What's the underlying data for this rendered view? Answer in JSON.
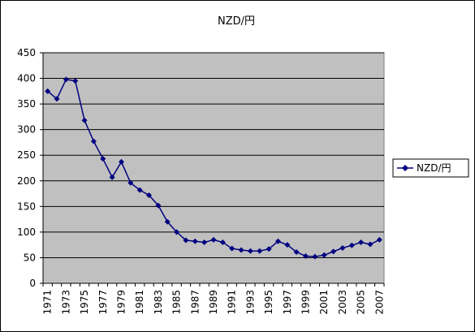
{
  "chart_data": {
    "type": "line",
    "title": "NZD/円",
    "xlabel": "",
    "ylabel": "",
    "ylim": [
      0,
      450
    ],
    "y_ticks": [
      0,
      50,
      100,
      150,
      200,
      250,
      300,
      350,
      400,
      450
    ],
    "x": [
      1971,
      1972,
      1973,
      1974,
      1975,
      1976,
      1977,
      1978,
      1979,
      1980,
      1981,
      1982,
      1983,
      1984,
      1985,
      1986,
      1987,
      1988,
      1989,
      1990,
      1991,
      1992,
      1993,
      1994,
      1995,
      1996,
      1997,
      1998,
      1999,
      2000,
      2001,
      2002,
      2003,
      2004,
      2005,
      2006,
      2007
    ],
    "x_tick_labels": [
      "1971",
      "1973",
      "1975",
      "1977",
      "1979",
      "1981",
      "1983",
      "1985",
      "1987",
      "1989",
      "1991",
      "1993",
      "1995",
      "1997",
      "1999",
      "2001",
      "2003",
      "2005",
      "2007"
    ],
    "series": [
      {
        "name": "NZD/円",
        "color": "#000080",
        "marker": "diamond",
        "values": [
          375,
          360,
          398,
          395,
          318,
          277,
          243,
          207,
          237,
          196,
          182,
          172,
          152,
          120,
          100,
          84,
          82,
          80,
          85,
          80,
          68,
          65,
          63,
          63,
          67,
          82,
          75,
          61,
          53,
          52,
          55,
          62,
          69,
          74,
          80,
          76,
          85
        ]
      }
    ],
    "grid": true,
    "plot_background": "#c0c0c0",
    "legend": "right"
  }
}
